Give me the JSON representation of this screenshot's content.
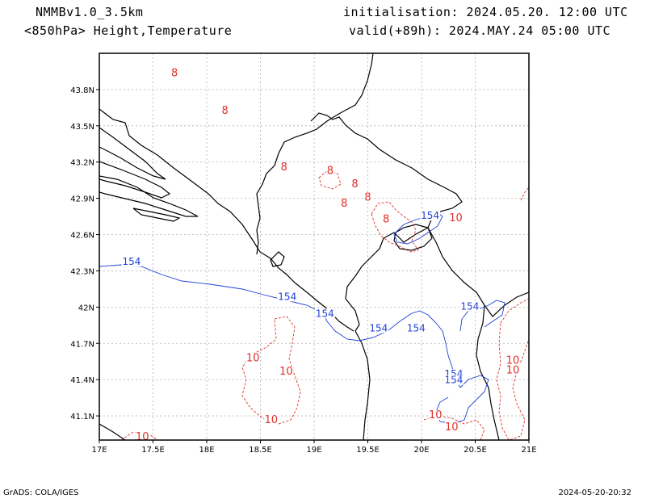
{
  "header": {
    "model": "NMMBv1.0_3.5km",
    "level_fields": "<850hPa> Height,Temperature",
    "initialisation": "initialisation: 2024.05.20. 12:00 UTC",
    "valid": "valid(+89h): 2024.MAY.24 05:00 UTC"
  },
  "footer": {
    "software": "GrADS: COLA/IGES",
    "generated": "2024-05-20-20:32"
  },
  "axes": {
    "lon_range": [
      17.0,
      21.0
    ],
    "lat_range": [
      40.9,
      44.1
    ],
    "lon_ticks": [
      {
        "value": 17.0,
        "label": "17E"
      },
      {
        "value": 17.5,
        "label": "17.5E"
      },
      {
        "value": 18.0,
        "label": "18E"
      },
      {
        "value": 18.5,
        "label": "18.5E"
      },
      {
        "value": 19.0,
        "label": "19E"
      },
      {
        "value": 19.5,
        "label": "19.5E"
      },
      {
        "value": 20.0,
        "label": "20E"
      },
      {
        "value": 20.5,
        "label": "20.5E"
      },
      {
        "value": 21.0,
        "label": "21E"
      }
    ],
    "lat_ticks": [
      {
        "value": 41.1,
        "label": "41.1N"
      },
      {
        "value": 41.4,
        "label": "41.4N"
      },
      {
        "value": 41.7,
        "label": "41.7N"
      },
      {
        "value": 42.0,
        "label": "42N"
      },
      {
        "value": 42.3,
        "label": "42.3N"
      },
      {
        "value": 42.6,
        "label": "42.6N"
      },
      {
        "value": 42.9,
        "label": "42.9N"
      },
      {
        "value": 43.2,
        "label": "43.2N"
      },
      {
        "value": 43.5,
        "label": "43.5N"
      },
      {
        "value": 43.8,
        "label": "43.8N"
      }
    ],
    "grid": true
  },
  "colors": {
    "height_contour": "#1f3fd8",
    "temperature_contour": "#e0302a",
    "border": "#000000",
    "grid": "#b0b0b0"
  },
  "height_contour_labels": [
    {
      "text": "154",
      "lon": 17.3,
      "lat": 42.35
    },
    {
      "text": "154",
      "lon": 18.75,
      "lat": 42.06
    },
    {
      "text": "154",
      "lon": 19.1,
      "lat": 41.92
    },
    {
      "text": "154",
      "lon": 19.6,
      "lat": 41.8
    },
    {
      "text": "154",
      "lon": 19.95,
      "lat": 41.8
    },
    {
      "text": "154",
      "lon": 20.45,
      "lat": 41.98
    },
    {
      "text": "154",
      "lon": 20.08,
      "lat": 42.73
    },
    {
      "text": "154",
      "lon": 20.3,
      "lat": 41.42
    },
    {
      "text": "154",
      "lon": 20.3,
      "lat": 41.37
    }
  ],
  "temperature_contour_labels": [
    {
      "text": "8",
      "lon": 17.7,
      "lat": 43.91
    },
    {
      "text": "8",
      "lon": 18.17,
      "lat": 43.6
    },
    {
      "text": "8",
      "lon": 18.72,
      "lat": 43.13
    },
    {
      "text": "8",
      "lon": 19.15,
      "lat": 43.1
    },
    {
      "text": "8",
      "lon": 19.38,
      "lat": 42.99
    },
    {
      "text": "8",
      "lon": 19.5,
      "lat": 42.88
    },
    {
      "text": "8",
      "lon": 19.28,
      "lat": 42.83
    },
    {
      "text": "8",
      "lon": 19.67,
      "lat": 42.7
    },
    {
      "text": "10",
      "lon": 20.32,
      "lat": 42.71
    },
    {
      "text": "10",
      "lon": 18.43,
      "lat": 41.55
    },
    {
      "text": "10",
      "lon": 18.74,
      "lat": 41.44
    },
    {
      "text": "10",
      "lon": 18.6,
      "lat": 41.04
    },
    {
      "text": "10",
      "lon": 20.13,
      "lat": 41.08
    },
    {
      "text": "10",
      "lon": 20.28,
      "lat": 40.98
    },
    {
      "text": "10",
      "lon": 17.4,
      "lat": 40.9
    },
    {
      "text": "10",
      "lon": 20.85,
      "lat": 41.53
    },
    {
      "text": "10",
      "lon": 20.85,
      "lat": 41.45
    }
  ]
}
